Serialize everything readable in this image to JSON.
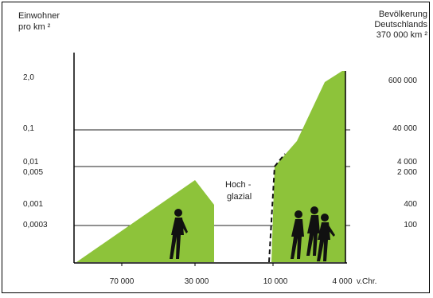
{
  "chart_data": {
    "type": "area",
    "left_axis_title": [
      "Einwohner",
      "pro km ²"
    ],
    "right_axis_title": [
      "Bevölkerung",
      "Deutschlands",
      "370 000 km ²"
    ],
    "left_tick_labels": [
      "2,0",
      "0,1",
      "0,01",
      "0,005",
      "0,001",
      "0,0003"
    ],
    "right_tick_labels": [
      "600 000",
      "40 000",
      "4 000",
      "2 000",
      "400",
      "100"
    ],
    "x_tick_labels": [
      "70 000",
      "30 000",
      "10 000",
      "4 000"
    ],
    "x_unit": "v.Chr.",
    "annotation": [
      "Hoch -",
      "glazial"
    ],
    "gridlines": [
      0.1,
      0.01,
      0.0003
    ],
    "series": [
      {
        "x": [
          80000,
          30000,
          27000,
          27000
        ],
        "y": [
          4e-05,
          0.003,
          0.0015,
          4e-05
        ],
        "color": "#8dc33a"
      },
      {
        "x": [
          10000,
          10000,
          7000,
          3500,
          2500,
          2500
        ],
        "y": [
          4e-05,
          0.01,
          0.035,
          1.0,
          2.0,
          4e-05
        ],
        "color": "#8dc33a",
        "left_edge_style": "dashed"
      }
    ]
  },
  "colors": {
    "area": "#8dc33a",
    "figure": "#111111",
    "grid": "#222222"
  }
}
